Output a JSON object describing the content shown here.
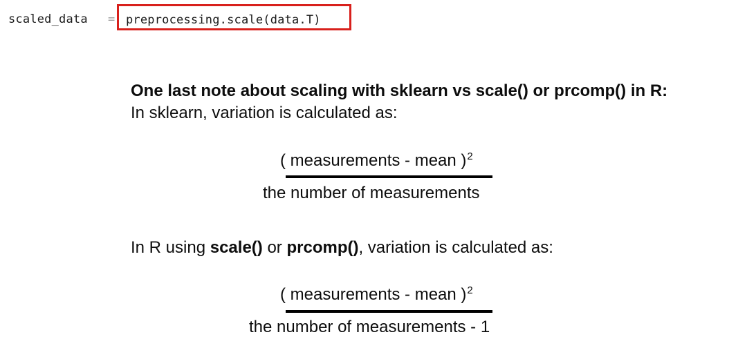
{
  "code": {
    "variable": "scaled_data",
    "operator": "=",
    "expression": "preprocessing.scale(data.T)",
    "highlight_color": "#d8201c"
  },
  "note": {
    "title": "One last note about scaling with sklearn vs scale() or prcomp() in R:",
    "sklearn_line": "In sklearn, variation is calculated as:",
    "r_line_prefix": "In R using ",
    "r_line_fn1": "scale()",
    "r_line_or": " or ",
    "r_line_fn2": "prcomp()",
    "r_line_suffix": ", variation is calculated as:"
  },
  "formula_sklearn": {
    "numerator": "( measurements - mean )",
    "exponent": "2",
    "denominator": "the number of measurements"
  },
  "formula_r": {
    "numerator": "( measurements - mean )",
    "exponent": "2",
    "denominator": "the number of measurements - 1"
  }
}
